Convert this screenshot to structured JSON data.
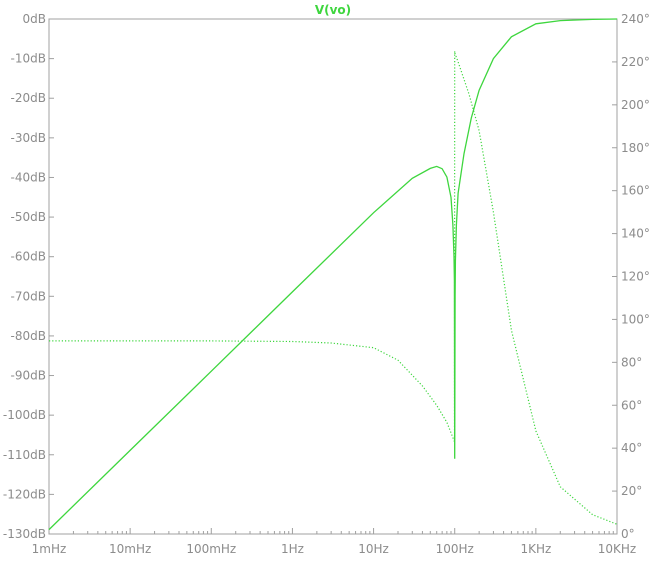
{
  "chart_data": {
    "type": "line",
    "title": "V(vo)",
    "colors": {
      "trace": "#3ed63e",
      "axis": "#a0a0a0",
      "text": "#8c8c8c",
      "background": "#ffffff"
    },
    "x_axis": {
      "scale": "log",
      "range_hz": [
        0.001,
        10000
      ],
      "tick_labels": [
        "1mHz",
        "10mHz",
        "100mHz",
        "1Hz",
        "10Hz",
        "100Hz",
        "1KHz",
        "10KHz"
      ],
      "tick_values": [
        0.001,
        0.01,
        0.1,
        1,
        10,
        100,
        1000,
        10000
      ]
    },
    "y_left": {
      "unit": "dB",
      "range": [
        -130,
        0
      ],
      "tick_labels": [
        "0dB",
        "-10dB",
        "-20dB",
        "-30dB",
        "-40dB",
        "-50dB",
        "-60dB",
        "-70dB",
        "-80dB",
        "-90dB",
        "-100dB",
        "-110dB",
        "-120dB",
        "-130dB"
      ],
      "tick_values": [
        0,
        -10,
        -20,
        -30,
        -40,
        -50,
        -60,
        -70,
        -80,
        -90,
        -100,
        -110,
        -120,
        -130
      ]
    },
    "y_right": {
      "unit": "deg",
      "range": [
        0,
        240
      ],
      "tick_labels": [
        "240°",
        "220°",
        "200°",
        "180°",
        "160°",
        "140°",
        "120°",
        "100°",
        "80°",
        "60°",
        "40°",
        "20°",
        "0°"
      ],
      "tick_values": [
        240,
        220,
        200,
        180,
        160,
        140,
        120,
        100,
        80,
        60,
        40,
        20,
        0
      ]
    },
    "series": [
      {
        "kind": "magnitude",
        "style": "solid",
        "axis": "left",
        "x": [
          0.001,
          0.01,
          0.1,
          1,
          10,
          30,
          50,
          60,
          70,
          80,
          90,
          95,
          98,
          99,
          100,
          101,
          102,
          105,
          110,
          130,
          160,
          200,
          300,
          500,
          1000,
          2000,
          5000,
          10000
        ],
        "y": [
          -128.9,
          -108.9,
          -88.9,
          -68.9,
          -48.9,
          -40.2,
          -37.7,
          -37.2,
          -37.8,
          -39.9,
          -45,
          -52,
          -60,
          -66,
          -111,
          -70,
          -61,
          -52,
          -44,
          -34,
          -25,
          -18,
          -10,
          -4.5,
          -1.2,
          -0.4,
          -0.1,
          0
        ]
      },
      {
        "kind": "phase",
        "style": "dotted",
        "axis": "right",
        "x": [
          0.001,
          0.01,
          0.1,
          1,
          3,
          10,
          20,
          40,
          60,
          80,
          99.5,
          100,
          100.5,
          110,
          150,
          200,
          300,
          500,
          1000,
          2000,
          5000,
          10000
        ],
        "y": [
          90,
          90,
          90,
          89.7,
          89,
          86.8,
          81,
          69,
          60,
          52,
          43,
          225,
          224,
          220,
          205,
          188,
          150,
          95,
          48,
          22,
          9,
          4.5
        ]
      }
    ]
  }
}
